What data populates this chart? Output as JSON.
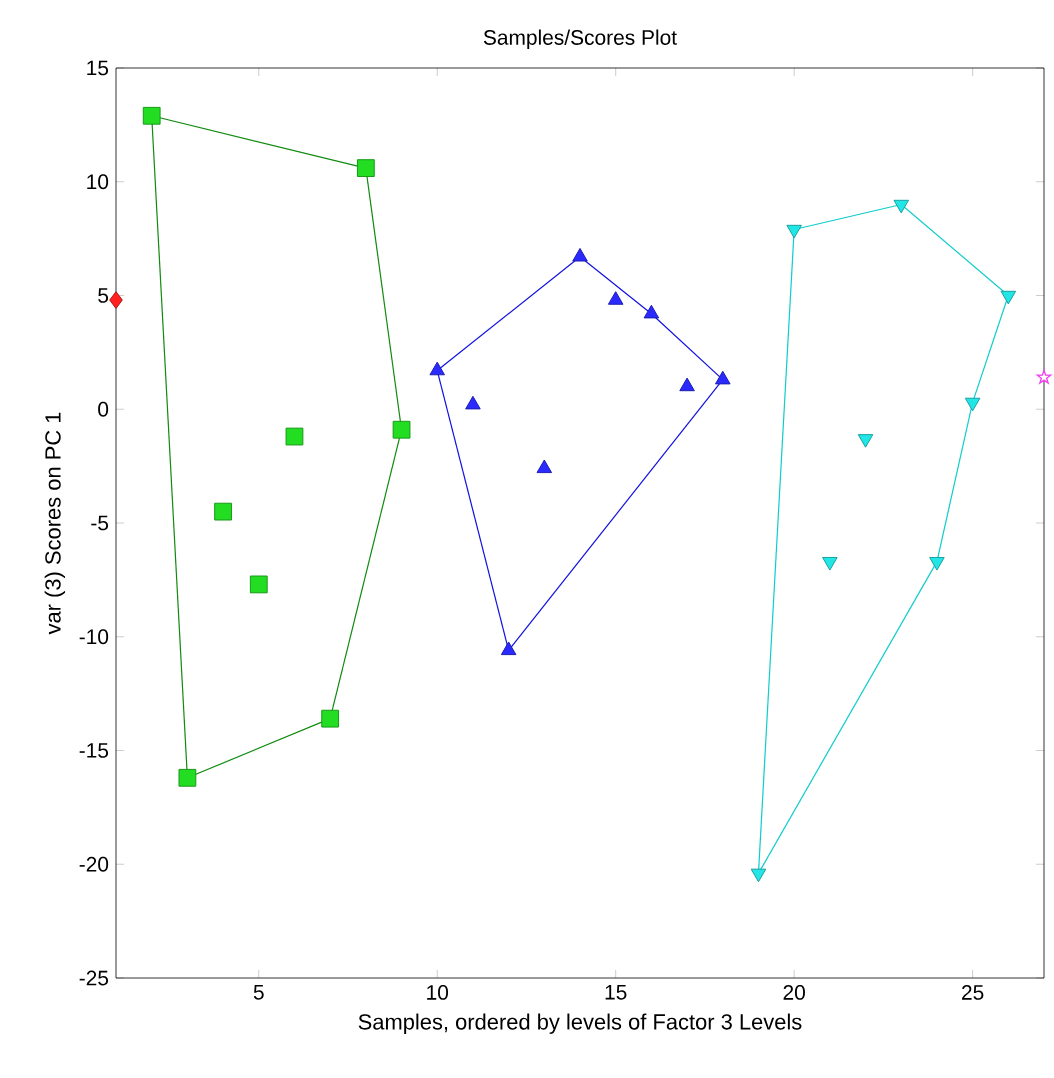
{
  "chart_data": {
    "type": "scatter",
    "title": "Samples/Scores Plot",
    "xlabel": "Samples, ordered by levels of Factor 3 Levels",
    "ylabel": "var (3) Scores on PC 1",
    "xlim": [
      1,
      27
    ],
    "ylim": [
      -25,
      15
    ],
    "xticks": [
      5,
      10,
      15,
      20,
      25
    ],
    "yticks": [
      -25,
      -20,
      -15,
      -10,
      -5,
      0,
      5,
      10,
      15
    ],
    "grid": false,
    "series": [
      {
        "marker": "diamond",
        "color": "#ff2020",
        "x": [
          1
        ],
        "values": [
          4.8
        ]
      },
      {
        "marker": "square",
        "color": "#22dd22",
        "x": [
          2,
          3,
          4,
          5,
          6,
          7,
          8,
          9
        ],
        "values": [
          12.9,
          -16.2,
          -4.5,
          -7.7,
          -1.2,
          -13.6,
          10.6,
          -0.9
        ]
      },
      {
        "marker": "triangle",
        "color": "#2a2aff",
        "x": [
          10,
          11,
          12,
          13,
          14,
          15,
          16,
          17,
          18
        ],
        "values": [
          1.7,
          0.2,
          -10.6,
          -2.6,
          6.7,
          4.8,
          4.2,
          1.0,
          1.3
        ]
      },
      {
        "marker": "triangle-down",
        "color": "#22e6e6",
        "x": [
          19,
          20,
          21,
          22,
          23,
          24,
          25,
          26
        ],
        "values": [
          -20.4,
          7.9,
          -6.7,
          -1.3,
          9.0,
          -6.7,
          0.3,
          5.0
        ]
      },
      {
        "marker": "star",
        "color": "#ee44ee",
        "x": [
          27
        ],
        "values": [
          1.4
        ]
      },
      {
        "type": "line",
        "marker": "none",
        "color": "#108a10",
        "x": [
          2,
          8
        ],
        "values": [
          12.9,
          10.6
        ]
      },
      {
        "type": "line",
        "marker": "none",
        "color": "#108a10",
        "x": [
          8,
          9
        ],
        "values": [
          10.6,
          -0.9
        ]
      },
      {
        "type": "line",
        "marker": "none",
        "color": "#108a10",
        "x": [
          7,
          9
        ],
        "values": [
          -13.6,
          -0.9
        ]
      },
      {
        "type": "line",
        "marker": "none",
        "color": "#108a10",
        "x": [
          3,
          7
        ],
        "values": [
          -16.2,
          -13.6
        ]
      },
      {
        "type": "line",
        "marker": "none",
        "color": "#108a10",
        "x": [
          2,
          3
        ],
        "values": [
          12.9,
          -16.2
        ]
      },
      {
        "type": "line",
        "marker": "none",
        "color": "#1010e0",
        "x": [
          10,
          14
        ],
        "values": [
          1.7,
          6.7
        ]
      },
      {
        "type": "line",
        "marker": "none",
        "color": "#1010e0",
        "x": [
          14,
          16
        ],
        "values": [
          6.7,
          4.2
        ]
      },
      {
        "type": "line",
        "marker": "none",
        "color": "#1010e0",
        "x": [
          16,
          18
        ],
        "values": [
          4.2,
          1.3
        ]
      },
      {
        "type": "line",
        "marker": "none",
        "color": "#1010e0",
        "x": [
          12,
          18
        ],
        "values": [
          -10.6,
          1.3
        ]
      },
      {
        "type": "line",
        "marker": "none",
        "color": "#1010e0",
        "x": [
          10,
          12
        ],
        "values": [
          1.7,
          -10.6
        ]
      },
      {
        "type": "line",
        "marker": "none",
        "color": "#10cccc",
        "x": [
          20,
          23
        ],
        "values": [
          7.9,
          9.0
        ]
      },
      {
        "type": "line",
        "marker": "none",
        "color": "#10cccc",
        "x": [
          23,
          26
        ],
        "values": [
          9.0,
          5.0
        ]
      },
      {
        "type": "line",
        "marker": "none",
        "color": "#10cccc",
        "x": [
          25,
          26
        ],
        "values": [
          0.3,
          5.0
        ]
      },
      {
        "type": "line",
        "marker": "none",
        "color": "#10cccc",
        "x": [
          24,
          25
        ],
        "values": [
          -6.7,
          0.3
        ]
      },
      {
        "type": "line",
        "marker": "none",
        "color": "#10cccc",
        "x": [
          19,
          24
        ],
        "values": [
          -20.4,
          -6.7
        ]
      },
      {
        "type": "line",
        "marker": "none",
        "color": "#10cccc",
        "x": [
          19,
          20
        ],
        "values": [
          -20.4,
          7.9
        ]
      }
    ]
  }
}
